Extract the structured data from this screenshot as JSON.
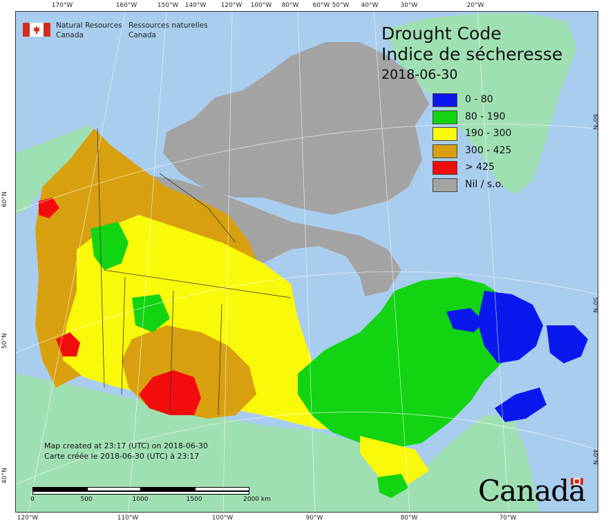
{
  "map": {
    "title_en": "Drought Code",
    "title_fr": "Indice de sécheresse",
    "date": "2018-06-30",
    "publisher_en": [
      "Natural Resources",
      "Canada"
    ],
    "publisher_fr": [
      "Ressources naturelles",
      "Canada"
    ],
    "created_en": "Map created at 23:17 (UTC) on 2018-06-30",
    "created_fr": "Carte créée le 2018-06-30 (UTC) à 23:17",
    "wordmark": "Canada"
  },
  "legend": [
    {
      "label": "0 - 80",
      "color": "#0a18ee"
    },
    {
      "label": "80 - 190",
      "color": "#12d412"
    },
    {
      "label": "190 - 300",
      "color": "#fbf90a"
    },
    {
      "label": "300 - 425",
      "color": "#d8a00e"
    },
    {
      "label": "> 425",
      "color": "#f20c0c"
    },
    {
      "label": "Nil / s.o.",
      "color": "#a3a3a3"
    }
  ],
  "colors": {
    "ocean": "#a9cdee",
    "other_land": "#9fe0b3",
    "no_data": "#a3a3a3",
    "grid": "#ffffff",
    "border": "#333333"
  },
  "graticule": {
    "top": [
      "170°W",
      "160°W",
      "150°W",
      "140°W",
      "120°W",
      "100°W",
      "80°W",
      "60°W",
      "50°W",
      "40°W",
      "30°W",
      "20°W"
    ],
    "bottom": [
      "120°W",
      "110°W",
      "100°W",
      "90°W",
      "80°W",
      "70°W"
    ],
    "left": [
      "60°N",
      "50°N",
      "40°N"
    ],
    "right": [
      "60°N",
      "50°N",
      "40°N"
    ]
  },
  "scale_bar": {
    "labels": [
      "0",
      "500",
      "1000",
      "1500",
      "2000 km"
    ]
  }
}
